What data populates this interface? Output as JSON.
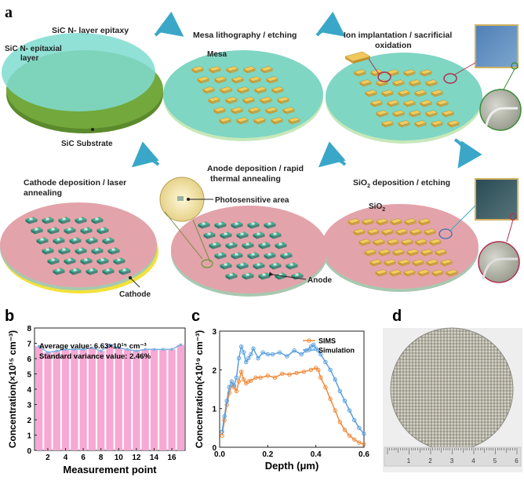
{
  "panel_a": {
    "label": "a",
    "step1": {
      "title": "SiC N- layer epitaxy",
      "epi_label_1": "SiC N- epitaxial",
      "epi_label_2": "layer",
      "substrate_label": "SiC Substrate"
    },
    "step2": {
      "title": "Mesa lithography / etching",
      "mesa_label": "Mesa"
    },
    "step3": {
      "title_1": "Ion implantation / sacrificial",
      "title_2": "oxidation"
    },
    "step4": {
      "title_prefix": "SiO",
      "title_sub": "2",
      "title_suffix": " deposition / etching",
      "sio2_prefix": "SiO",
      "sio2_sub": "2"
    },
    "step5": {
      "title_1": "Anode deposition / rapid",
      "title_2": "thermal annealing",
      "photo_label": "Photosensitive area",
      "anode_label": "Anode"
    },
    "step6": {
      "title_1": "Cathode  deposition / laser",
      "title_2": "annealing",
      "cathode_label": "Cathode"
    },
    "colors": {
      "epi": "#7fdcd0",
      "substrate": "#6a9a3a",
      "wafer_teal": "#7fd6c3",
      "wafer_pink": "#e3a3aa",
      "mesa": "#f0c85a",
      "arrow": "#3aa7c8",
      "cathode": "#f2e23a"
    }
  },
  "panel_b": {
    "label": "b",
    "annotation_1": "Average value: 6.63×10¹⁵ cm⁻³",
    "annotation_2": "Standard variance value: 2.46%",
    "chart_data": {
      "type": "bar",
      "xlabel": "Measurement point",
      "ylabel": "Concentration(×10¹⁵ cm⁻³)",
      "categories": [
        1,
        2,
        3,
        4,
        5,
        6,
        7,
        8,
        9,
        10,
        11,
        12,
        13,
        14,
        15,
        16,
        17
      ],
      "values": [
        6.8,
        6.4,
        6.5,
        6.6,
        6.6,
        6.6,
        6.7,
        6.5,
        6.9,
        6.7,
        6.6,
        6.5,
        6.6,
        6.6,
        6.6,
        6.6,
        6.9
      ],
      "xticks": [
        "2",
        "4",
        "6",
        "8",
        "10",
        "12",
        "14",
        "16"
      ],
      "yticks": [
        "0",
        "1",
        "2",
        "3",
        "4",
        "5",
        "6",
        "7",
        "8"
      ],
      "ylim": [
        0,
        8
      ],
      "bar_color": "#f7a8d4",
      "line_color": "#7fb0e0"
    }
  },
  "panel_c": {
    "label": "c",
    "chart_data": {
      "type": "line",
      "xlabel": "Depth (μm)",
      "ylabel": "Concentration(×10¹⁹ cm⁻³)",
      "xlim": [
        0,
        0.6
      ],
      "ylim": [
        0,
        3
      ],
      "xticks": [
        "0.0",
        "0.2",
        "0.4",
        "0.6"
      ],
      "yticks": [
        "0",
        "1",
        "2",
        "3"
      ],
      "legend": "top-right",
      "series": [
        {
          "name": "SIMS",
          "color": "#f08a3a",
          "x": [
            0.01,
            0.02,
            0.03,
            0.04,
            0.05,
            0.06,
            0.07,
            0.08,
            0.09,
            0.1,
            0.11,
            0.12,
            0.13,
            0.15,
            0.17,
            0.2,
            0.23,
            0.26,
            0.29,
            0.32,
            0.35,
            0.38,
            0.4,
            0.41,
            0.42,
            0.44,
            0.46,
            0.48,
            0.5,
            0.52,
            0.54,
            0.56,
            0.58,
            0.6
          ],
          "y": [
            0.3,
            0.7,
            1.1,
            1.4,
            1.6,
            1.55,
            1.45,
            1.7,
            1.95,
            1.75,
            1.65,
            1.7,
            1.72,
            1.8,
            1.8,
            1.85,
            1.8,
            1.9,
            1.88,
            1.92,
            1.95,
            2.0,
            2.05,
            2.0,
            1.8,
            1.55,
            1.25,
            0.95,
            0.65,
            0.45,
            0.3,
            0.2,
            0.12,
            0.08
          ]
        },
        {
          "name": "Simulation",
          "color": "#5aa0e0",
          "x": [
            0.01,
            0.02,
            0.03,
            0.04,
            0.05,
            0.06,
            0.07,
            0.08,
            0.09,
            0.1,
            0.11,
            0.12,
            0.13,
            0.14,
            0.16,
            0.18,
            0.2,
            0.22,
            0.25,
            0.28,
            0.31,
            0.34,
            0.36,
            0.38,
            0.39,
            0.4,
            0.41,
            0.42,
            0.44,
            0.46,
            0.48,
            0.5,
            0.52,
            0.54,
            0.56,
            0.58,
            0.6
          ],
          "y": [
            0.4,
            0.8,
            1.2,
            1.55,
            1.7,
            1.6,
            1.8,
            2.3,
            2.6,
            2.45,
            2.2,
            2.3,
            2.4,
            2.55,
            2.3,
            2.45,
            2.4,
            2.4,
            2.45,
            2.35,
            2.5,
            2.4,
            2.5,
            2.6,
            2.65,
            2.55,
            2.5,
            2.4,
            2.2,
            2.0,
            1.75,
            1.45,
            1.2,
            0.95,
            0.7,
            0.5,
            0.35
          ]
        }
      ]
    }
  },
  "panel_d": {
    "label": "d",
    "ruler_numbers": [
      "1",
      "2",
      "3",
      "4",
      "5",
      "6"
    ]
  }
}
